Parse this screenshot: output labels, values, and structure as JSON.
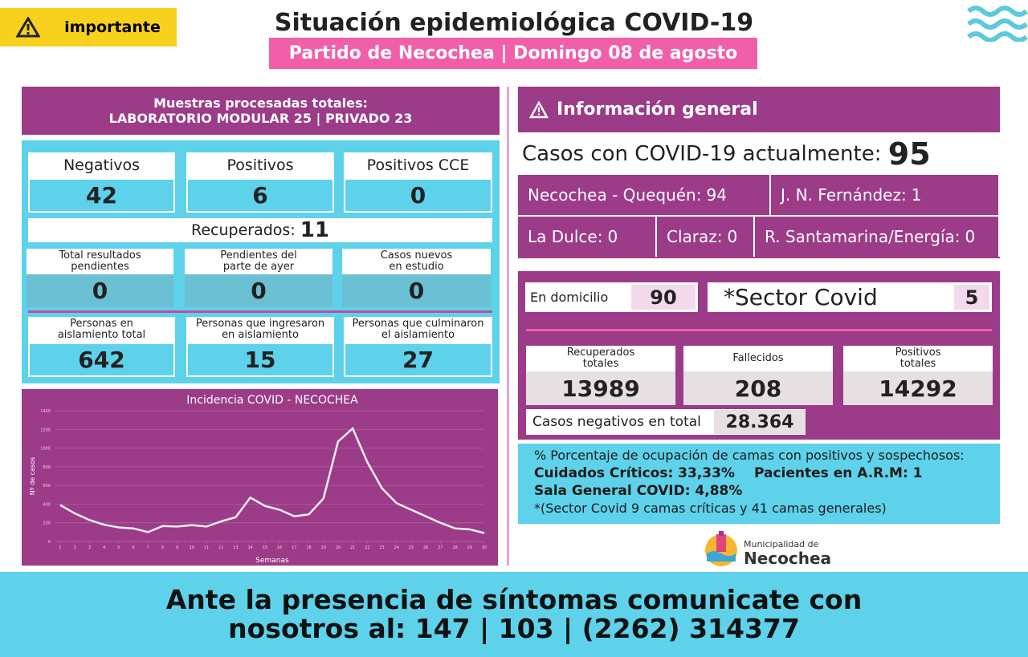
{
  "header": {
    "badge": "importante",
    "title": "Situación epidemiológica COVID-19",
    "subtitle": "Partido de Necochea | Domingo 08 de agosto"
  },
  "samples": {
    "line1": "Muestras procesadas totales:",
    "line2": "LABORATORIO MODULAR 25 | PRIVADO 23"
  },
  "tests": [
    {
      "label": "Negativos",
      "value": 42
    },
    {
      "label": "Positivos",
      "value": 6
    },
    {
      "label": "Positivos CCE",
      "value": 0
    }
  ],
  "recovered": {
    "label": "Recuperados:",
    "value": 11
  },
  "pending": [
    {
      "label": "Total resultados\npendientes",
      "value": 0
    },
    {
      "label": "Pendientes del\nparte de ayer",
      "value": 0
    },
    {
      "label": "Casos nuevos\nen estudio",
      "value": 0
    }
  ],
  "isolation": [
    {
      "label": "Personas en\naislamiento total",
      "value": 642
    },
    {
      "label": "Personas que ingresaron\nen aislamiento",
      "value": 15
    },
    {
      "label": "Personas que culminaron\nel aislamiento",
      "value": 27
    }
  ],
  "chart_data": {
    "type": "line",
    "title": "Incidencia COVID - NECOCHEA",
    "x_label": "Semanas",
    "y_label": "Nº de casos",
    "x": [
      1,
      2,
      3,
      4,
      5,
      6,
      7,
      8,
      9,
      10,
      11,
      12,
      13,
      14,
      15,
      16,
      17,
      18,
      19,
      20,
      21,
      22,
      23,
      24,
      25,
      26,
      27,
      28,
      29,
      30
    ],
    "values": [
      390,
      300,
      230,
      180,
      150,
      140,
      100,
      165,
      160,
      175,
      160,
      215,
      260,
      470,
      380,
      340,
      270,
      290,
      460,
      1070,
      1210,
      850,
      570,
      410,
      340,
      270,
      200,
      140,
      130,
      90
    ],
    "color": "#f3eef3",
    "xlim": [
      1,
      30
    ],
    "xticks": [
      1,
      2,
      3,
      4,
      5,
      6,
      7,
      8,
      9,
      10,
      11,
      12,
      13,
      14,
      15,
      16,
      17,
      18,
      19,
      20,
      21,
      22,
      23,
      24,
      25,
      26,
      27,
      28,
      29,
      30
    ],
    "ylim": [
      0,
      1400
    ],
    "yticks": [
      0,
      200,
      400,
      600,
      800,
      1000,
      1200,
      1400
    ],
    "grid": true
  },
  "general": {
    "title": "Información general",
    "active_label": "Casos con COVID-19 actualmente:",
    "active": 95,
    "localities": [
      {
        "name": "Necochea - Quequén:",
        "value": 94
      },
      {
        "name": "J. N. Fernández:",
        "value": 1
      },
      {
        "name": "La Dulce:",
        "value": 0
      },
      {
        "name": "Claraz:",
        "value": 0
      },
      {
        "name": "R. Santamarina/Energía:",
        "value": 0
      }
    ]
  },
  "care": {
    "home_label": "En domicilio",
    "home": 90,
    "sector_label": "*Sector Covid",
    "sector": 5
  },
  "totals": [
    {
      "label": "Recuperados\ntotales",
      "value": 13989
    },
    {
      "label": "Fallecidos",
      "value": 208
    },
    {
      "label": "Positivos\ntotales",
      "value": 14292
    }
  ],
  "negatives": {
    "label": "Casos negativos en total",
    "value": "28.364"
  },
  "beds": {
    "line1": "% Porcentaje de ocupación de camas con positivos y sospechosos:",
    "critical": "Cuidados Críticos: 33,33%",
    "arm": "Pacientes en A.R.M: 1",
    "general": "Sala General COVID: 4,88%",
    "note": "*(Sector Covid 9 camas críticas y  41 camas generales)"
  },
  "logo": {
    "line1": "Municipalidad de",
    "line2": "Necochea"
  },
  "footer": {
    "line1": "Ante la presencia de síntomas comunicate con",
    "line2": "nosotros al: 147 | 103 | (2262) 314377"
  }
}
